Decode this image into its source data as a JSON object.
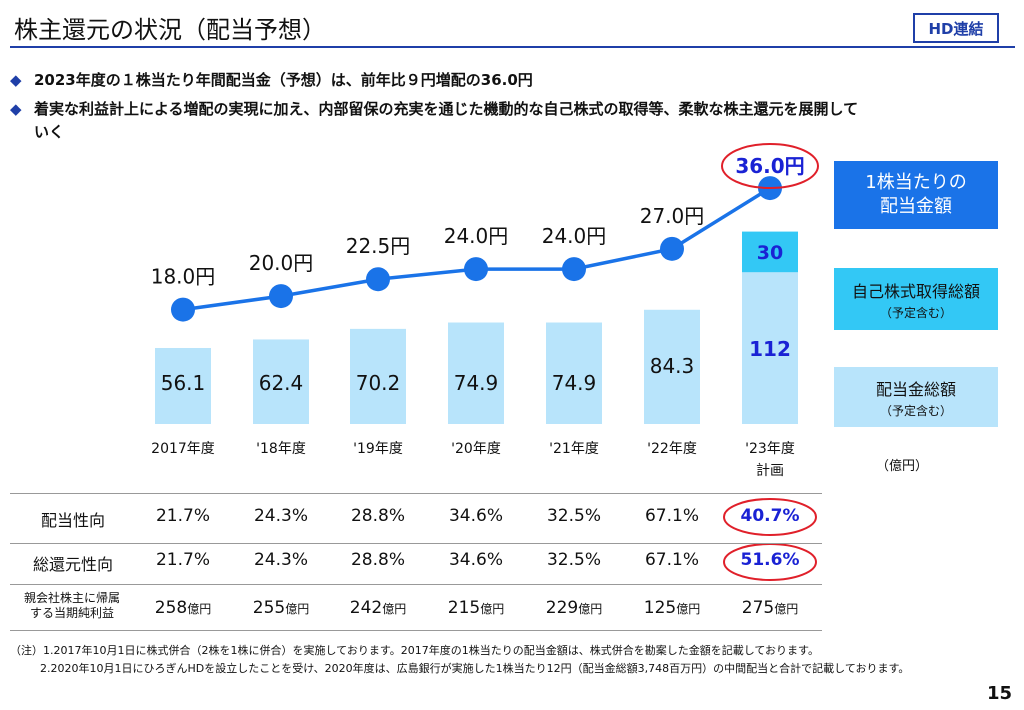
{
  "title": "株主還元の状況（配当予想）",
  "badge": "HD連結",
  "bullets": [
    "2023年度の１株当たり年間配当金（予想）は、前年比９円増配の36.0円",
    "着実な利益計上による増配の実現に加え、内部留保の充実を通じた機動的な自己株式の取得等、柔軟な株主還元を展開して",
    "いく"
  ],
  "bullet_marker": "◆",
  "legend": {
    "dps_line1": "1株当たりの",
    "dps_line2": "配当金額",
    "buyback": "自己株式取得総額",
    "buyback_sub": "（予定含む）",
    "dividend": "配当金総額",
    "dividend_sub": "（予定含む）"
  },
  "unit": "（億円）",
  "colors": {
    "accent": "#1f3fa8",
    "dps": "#1a73e8",
    "buyback": "#33c8f5",
    "dividend": "#b8e4fb",
    "highlight": "#e0202a",
    "highlight_text": "#1a22d4"
  },
  "chart_data": {
    "type": "bar",
    "categories": [
      "2017年度",
      "'18年度",
      "'19年度",
      "'20年度",
      "'21年度",
      "'22年度",
      "'23年度"
    ],
    "category_sub": [
      "",
      "",
      "",
      "",
      "",
      "",
      "計画"
    ],
    "series": [
      {
        "name": "配当金総額",
        "values": [
          56.1,
          62.4,
          70.2,
          74.9,
          74.9,
          84.3,
          112
        ]
      },
      {
        "name": "自己株式取得総額",
        "values": [
          0,
          0,
          0,
          0,
          0,
          0,
          30
        ]
      }
    ],
    "line": {
      "name": "1株当たりの配当金額",
      "values": [
        18.0,
        20.0,
        22.5,
        24.0,
        24.0,
        27.0,
        36.0
      ],
      "labels": [
        "18.0円",
        "20.0円",
        "22.5円",
        "24.0円",
        "24.0円",
        "27.0円",
        "36.0円"
      ]
    },
    "bar_labels": [
      "56.1",
      "62.4",
      "70.2",
      "74.9",
      "74.9",
      "84.3",
      "112"
    ],
    "buyback_labels": [
      "",
      "",
      "",
      "",
      "",
      "",
      "30"
    ]
  },
  "table": {
    "rows": [
      {
        "label": "配当性向",
        "values": [
          "21.7%",
          "24.3%",
          "28.8%",
          "34.6%",
          "32.5%",
          "67.1%",
          "40.7%"
        ]
      },
      {
        "label": "総還元性向",
        "values": [
          "21.7%",
          "24.3%",
          "28.8%",
          "34.6%",
          "32.5%",
          "67.1%",
          "51.6%"
        ]
      }
    ],
    "net_profit": {
      "label_line1": "親会社株主に帰属",
      "label_line2": "する当期純利益",
      "values": [
        "258",
        "255",
        "242",
        "215",
        "229",
        "125",
        "275"
      ],
      "unit": "億円"
    }
  },
  "notes": [
    "（注）1.2017年10月1日に株式併合（2株を1株に併合）を実施しております。2017年度の1株当たりの配当金額は、株式併合を勘案した金額を記載しております。",
    "2.2020年10月1日にひろぎんHDを設立したことを受け、2020年度は、広島銀行が実施した1株当たり12円（配当金総額3,748百万円）の中間配当と合計で記載しております。"
  ],
  "page_number": "15"
}
